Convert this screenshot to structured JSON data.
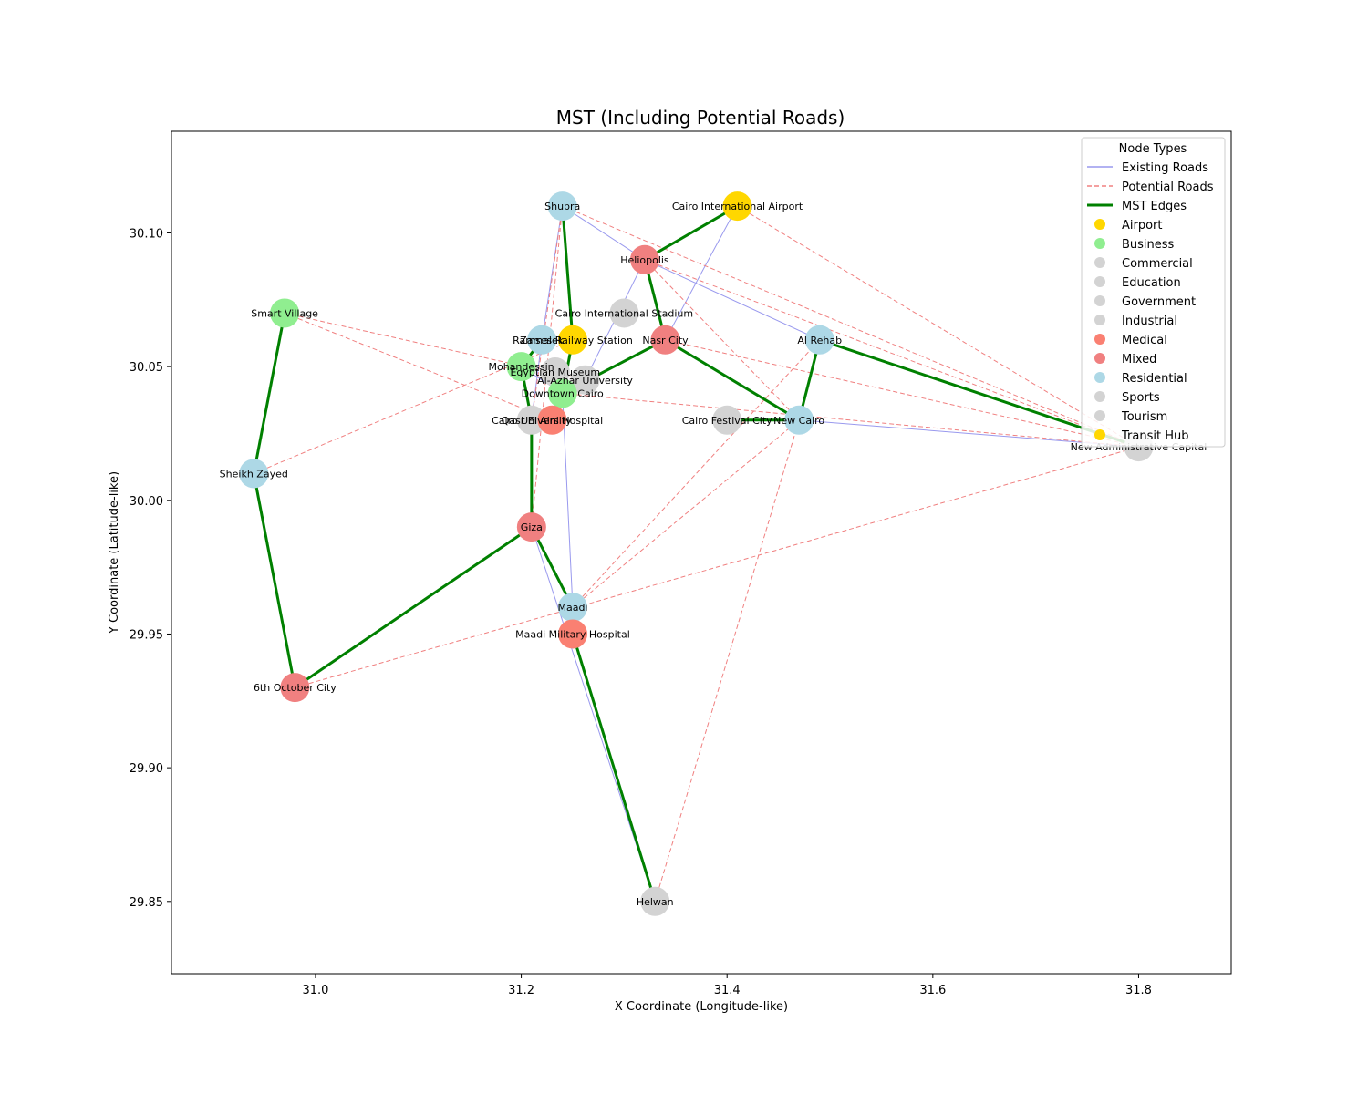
{
  "chart_data": {
    "type": "network",
    "title": "MST (Including Potential Roads)",
    "xlabel": "X Coordinate (Longitude-like)",
    "ylabel": "Y Coordinate (Latitude-like)",
    "xlim": [
      30.86,
      31.89
    ],
    "ylim": [
      29.823,
      30.138
    ],
    "xticks": [
      "31.0",
      "31.2",
      "31.4",
      "31.6",
      "31.8"
    ],
    "xtick_values": [
      31.0,
      31.2,
      31.4,
      31.6,
      31.8
    ],
    "yticks": [
      "29.85",
      "29.90",
      "29.95",
      "30.00",
      "30.05",
      "30.10"
    ],
    "ytick_values": [
      29.85,
      29.9,
      29.95,
      30.0,
      30.05,
      30.1
    ],
    "grid": false,
    "legend": {
      "title": "Node Types",
      "placement": "top-right",
      "edge_entries": [
        {
          "label": "Existing Roads",
          "style": "existing"
        },
        {
          "label": "Potential Roads",
          "style": "potential"
        },
        {
          "label": "MST Edges",
          "style": "mst"
        }
      ],
      "node_entries": [
        {
          "label": "Airport",
          "color": "#FFD700"
        },
        {
          "label": "Business",
          "color": "#90EE90"
        },
        {
          "label": "Commercial",
          "color": "#D3D3D3"
        },
        {
          "label": "Education",
          "color": "#D3D3D3"
        },
        {
          "label": "Government",
          "color": "#D3D3D3"
        },
        {
          "label": "Industrial",
          "color": "#D3D3D3"
        },
        {
          "label": "Medical",
          "color": "#FA8072"
        },
        {
          "label": "Mixed",
          "color": "#F08080"
        },
        {
          "label": "Residential",
          "color": "#ADD8E6"
        },
        {
          "label": "Sports",
          "color": "#D3D3D3"
        },
        {
          "label": "Tourism",
          "color": "#D3D3D3"
        },
        {
          "label": "Transit Hub",
          "color": "#FFD700"
        }
      ]
    },
    "colors": {
      "existing": "#9999EE",
      "potential": "#F08080",
      "mst": "#008000"
    },
    "nodes": [
      {
        "id": "shubra",
        "name": "Shubra",
        "x": 31.24,
        "y": 30.11,
        "color": "#ADD8E6"
      },
      {
        "id": "airport",
        "name": "Cairo International Airport",
        "x": 31.41,
        "y": 30.11,
        "color": "#FFD700"
      },
      {
        "id": "heliopolis",
        "name": "Heliopolis",
        "x": 31.32,
        "y": 30.09,
        "color": "#F08080"
      },
      {
        "id": "smartvillage",
        "name": "Smart Village",
        "x": 30.97,
        "y": 30.07,
        "color": "#90EE90"
      },
      {
        "id": "stadium",
        "name": "Cairo International Stadium",
        "x": 31.3,
        "y": 30.07,
        "color": "#D3D3D3"
      },
      {
        "id": "zamalek",
        "name": "Zamalek",
        "x": 31.22,
        "y": 30.06,
        "color": "#ADD8E6"
      },
      {
        "id": "ramses",
        "name": "Ramses Railway Station",
        "x": 31.25,
        "y": 30.06,
        "color": "#FFD700"
      },
      {
        "id": "nasrcity",
        "name": "Nasr City",
        "x": 31.34,
        "y": 30.06,
        "color": "#F08080"
      },
      {
        "id": "alrehab",
        "name": "Al Rehab",
        "x": 31.49,
        "y": 30.06,
        "color": "#ADD8E6"
      },
      {
        "id": "mohandessin",
        "name": "Mohandessin",
        "x": 31.2,
        "y": 30.05,
        "color": "#90EE90"
      },
      {
        "id": "egyptianmuseum",
        "name": "Egyptian Museum",
        "x": 31.233,
        "y": 30.048,
        "color": "#D3D3D3"
      },
      {
        "id": "alazhar",
        "name": "Al-Azhar University",
        "x": 31.262,
        "y": 30.045,
        "color": "#D3D3D3"
      },
      {
        "id": "downtown",
        "name": "Downtown Cairo",
        "x": 31.24,
        "y": 30.04,
        "color": "#90EE90"
      },
      {
        "id": "cairouniv",
        "name": "Cairo University",
        "x": 31.21,
        "y": 30.03,
        "color": "#D3D3D3"
      },
      {
        "id": "qasrhospital",
        "name": "Qasr El Aini Hospital",
        "x": 31.23,
        "y": 30.03,
        "color": "#FA8072"
      },
      {
        "id": "festival",
        "name": "Cairo Festival City",
        "x": 31.4,
        "y": 30.03,
        "color": "#D3D3D3"
      },
      {
        "id": "newcairo",
        "name": "New Cairo",
        "x": 31.47,
        "y": 30.03,
        "color": "#ADD8E6"
      },
      {
        "id": "newcapital",
        "name": "New Administrative Capital",
        "x": 31.8,
        "y": 30.02,
        "color": "#D3D3D3"
      },
      {
        "id": "sheikhzayed",
        "name": "Sheikh Zayed",
        "x": 30.94,
        "y": 30.01,
        "color": "#ADD8E6"
      },
      {
        "id": "giza",
        "name": "Giza",
        "x": 31.21,
        "y": 29.99,
        "color": "#F08080"
      },
      {
        "id": "maadi",
        "name": "Maadi",
        "x": 31.25,
        "y": 29.96,
        "color": "#ADD8E6"
      },
      {
        "id": "maadihospital",
        "name": "Maadi Military Hospital",
        "x": 31.25,
        "y": 29.95,
        "color": "#FA8072"
      },
      {
        "id": "october",
        "name": "6th October City",
        "x": 30.98,
        "y": 29.93,
        "color": "#F08080"
      },
      {
        "id": "helwan",
        "name": "Helwan",
        "x": 31.33,
        "y": 29.85,
        "color": "#D3D3D3"
      }
    ],
    "existing_edges": [
      [
        "shubra",
        "heliopolis"
      ],
      [
        "heliopolis",
        "alrehab"
      ],
      [
        "shubra",
        "zamalek"
      ],
      [
        "zamalek",
        "cairouniv"
      ],
      [
        "airport",
        "nasrcity"
      ],
      [
        "heliopolis",
        "alazhar"
      ],
      [
        "downtown",
        "mohandessin"
      ],
      [
        "downtown",
        "maadi"
      ],
      [
        "giza",
        "helwan"
      ],
      [
        "newcairo",
        "newcapital"
      ],
      [
        "festival",
        "newcairo"
      ],
      [
        "zamalek",
        "ramses"
      ]
    ],
    "potential_edges": [
      [
        "smartvillage",
        "qasrhospital"
      ],
      [
        "smartvillage",
        "alazhar"
      ],
      [
        "shubra",
        "newcapital"
      ],
      [
        "airport",
        "newcapital"
      ],
      [
        "heliopolis",
        "newcapital"
      ],
      [
        "nasrcity",
        "newcapital"
      ],
      [
        "downtown",
        "newcapital"
      ],
      [
        "shubra",
        "cairouniv"
      ],
      [
        "shubra",
        "giza"
      ],
      [
        "sheikhzayed",
        "ramses"
      ],
      [
        "october",
        "newcapital"
      ],
      [
        "helwan",
        "newcairo"
      ],
      [
        "maadi",
        "newcairo"
      ],
      [
        "maadi",
        "alrehab"
      ],
      [
        "heliopolis",
        "newcairo"
      ]
    ],
    "mst_edges": [
      [
        "airport",
        "heliopolis"
      ],
      [
        "heliopolis",
        "nasrcity"
      ],
      [
        "nasrcity",
        "newcairo"
      ],
      [
        "newcairo",
        "alrehab"
      ],
      [
        "alrehab",
        "newcapital"
      ],
      [
        "newcairo",
        "festival"
      ],
      [
        "nasrcity",
        "downtown"
      ],
      [
        "shubra",
        "ramses"
      ],
      [
        "ramses",
        "downtown"
      ],
      [
        "zamalek",
        "mohandessin"
      ],
      [
        "mohandessin",
        "cairouniv"
      ],
      [
        "cairouniv",
        "giza"
      ],
      [
        "giza",
        "maadi"
      ],
      [
        "maadi",
        "maadihospital"
      ],
      [
        "maadihospital",
        "helwan"
      ],
      [
        "giza",
        "october"
      ],
      [
        "october",
        "sheikhzayed"
      ],
      [
        "sheikhzayed",
        "smartvillage"
      ],
      [
        "downtown",
        "qasrhospital"
      ],
      [
        "downtown",
        "egyptianmuseum"
      ],
      [
        "downtown",
        "alazhar"
      ]
    ]
  }
}
